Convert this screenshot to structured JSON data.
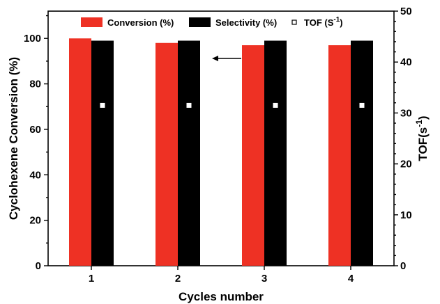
{
  "chart_data": {
    "type": "bar",
    "categories": [
      "1",
      "2",
      "3",
      "4"
    ],
    "series": [
      {
        "name": "Conversion (%)",
        "values": [
          100,
          98,
          97,
          97
        ],
        "color": "#ee3124",
        "axis": "left"
      },
      {
        "name": "Selectivity (%)",
        "values": [
          99,
          99,
          99,
          99
        ],
        "color": "#000000",
        "axis": "left"
      },
      {
        "name": "TOF (S",
        "name_sup": "-1",
        "name_suffix": ")",
        "values": [
          31.5,
          31.5,
          31.5,
          31.5
        ],
        "axis": "right",
        "marker": "square-hollow"
      }
    ],
    "xlabel": "Cycles number",
    "ylabel_left": "Cyclohexene Conversion (%)",
    "ylabel_right": {
      "text": "TOF(s",
      "sup": "-1",
      "suffix": ")"
    },
    "ylim_left": [
      0,
      112
    ],
    "ylim_right": [
      0,
      50
    ],
    "yticks_left": [
      0,
      20,
      40,
      60,
      80,
      100
    ],
    "yticks_right": [
      0,
      10,
      20,
      30,
      40,
      50
    ],
    "annotation": {
      "type": "arrow",
      "direction": "left",
      "points_to": "left axis"
    },
    "legend_position": "top"
  }
}
